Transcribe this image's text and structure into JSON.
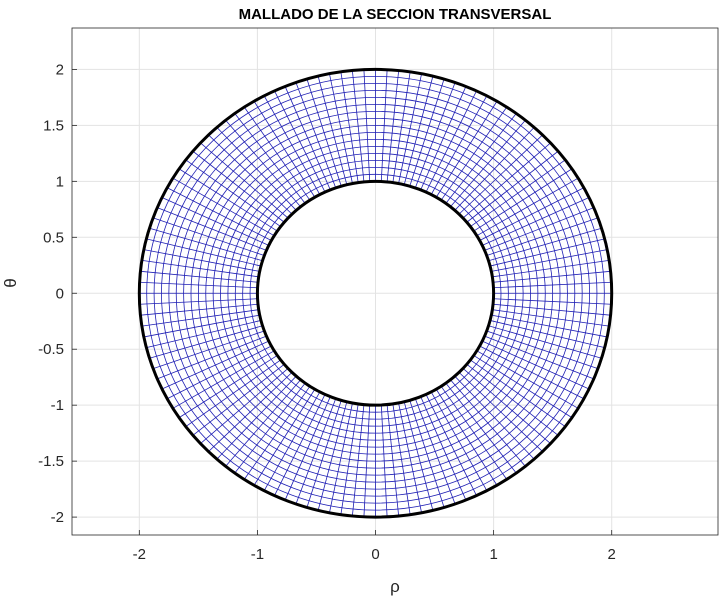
{
  "chart_data": {
    "type": "line",
    "title": "MALLADO DE LA SECCION TRANSVERSAL",
    "xlabel": "ρ",
    "ylabel": "θ",
    "xlim": [
      -2.57,
      2.9
    ],
    "ylim": [
      -2.16,
      2.37
    ],
    "xticks": [
      -2,
      -1,
      0,
      1,
      2
    ],
    "xtick_labels": [
      "-2",
      "-1",
      "0",
      "1",
      "2"
    ],
    "yticks": [
      2,
      1.5,
      1,
      0.5,
      0,
      -0.5,
      -1,
      -1.5,
      -2
    ],
    "ytick_labels": [
      "2",
      "1.5",
      "1",
      "0.5",
      "0",
      "-0.5",
      "-1",
      "-1.5",
      "-2"
    ],
    "grid": true,
    "mesh": {
      "inner_radius": 1,
      "outer_radius": 2,
      "radial_divisions": 16,
      "angular_divisions": 128,
      "mesh_color": "#1f1fb4",
      "boundary_color": "#000000"
    }
  }
}
